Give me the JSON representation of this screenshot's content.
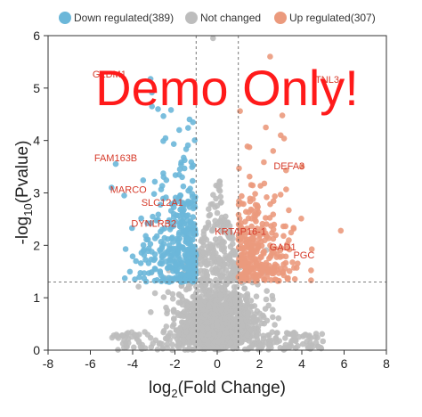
{
  "chart_data": {
    "type": "scatter",
    "xlabel_base": "log",
    "xlabel_sub": "2",
    "xlabel_rest": "(Fold Change)",
    "ylabel_pre": "-log",
    "ylabel_sub": "10",
    "ylabel_rest": "(Pvalue)",
    "xlim": [
      -8,
      8
    ],
    "ylim": [
      0,
      6
    ],
    "xticks": [
      "-8",
      "-6",
      "-4",
      "-2",
      "0",
      "2",
      "4",
      "6",
      "8"
    ],
    "yticks": [
      "0",
      "1",
      "2",
      "3",
      "4",
      "5",
      "6"
    ],
    "grid": false,
    "legend_position": "top",
    "thresholds": {
      "fold_change_log2": [
        -1,
        1
      ],
      "pvalue_log10": 1.3
    },
    "series": [
      {
        "name": "Down regulated(389)",
        "color": "#6bb7d9"
      },
      {
        "name": "Not changed",
        "color": "#bdbdbd"
      },
      {
        "name": "Up regulated(307)",
        "color": "#eb9a7d"
      }
    ],
    "labeled_genes": [
      {
        "label": "GLDM1",
        "x": -5.1,
        "y": 5.2
      },
      {
        "label": "FAM163B",
        "x": -4.8,
        "y": 3.6
      },
      {
        "label": "MARCO",
        "x": -4.2,
        "y": 3.0
      },
      {
        "label": "SLC12A1",
        "x": -2.6,
        "y": 2.75
      },
      {
        "label": "DYNLRB2",
        "x": -3.0,
        "y": 2.35
      },
      {
        "label": "DEFA3",
        "x": 3.4,
        "y": 3.45
      },
      {
        "label": "KRTAP16-1",
        "x": 1.1,
        "y": 2.2
      },
      {
        "label": "GAD1",
        "x": 3.1,
        "y": 1.9
      },
      {
        "label": "PGC",
        "x": 4.1,
        "y": 1.75
      },
      {
        "label": "TNL3",
        "x": 5.2,
        "y": 5.1
      }
    ]
  },
  "watermark": "Demo Only!"
}
